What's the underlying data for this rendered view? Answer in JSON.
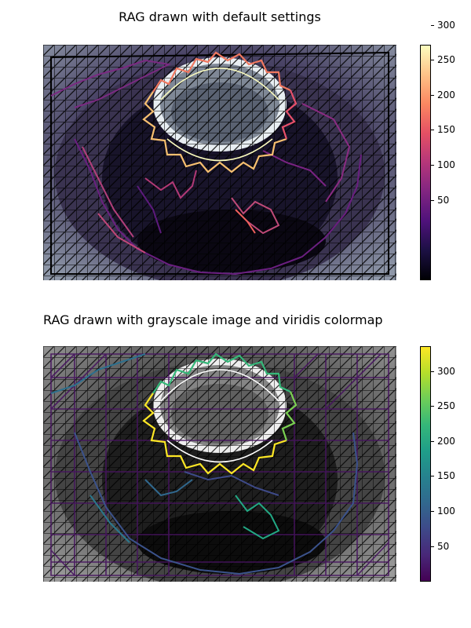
{
  "figure": {
    "top_title": "RAG drawn with default settings",
    "bottom_title": "RAG drawn with grayscale image and viridis colormap",
    "top_colormap": "magma",
    "bottom_colormap": "viridis",
    "colorbar_ticks": [
      "50",
      "100",
      "150",
      "200",
      "250",
      "300"
    ],
    "colorbar_range": [
      1,
      337
    ]
  }
}
